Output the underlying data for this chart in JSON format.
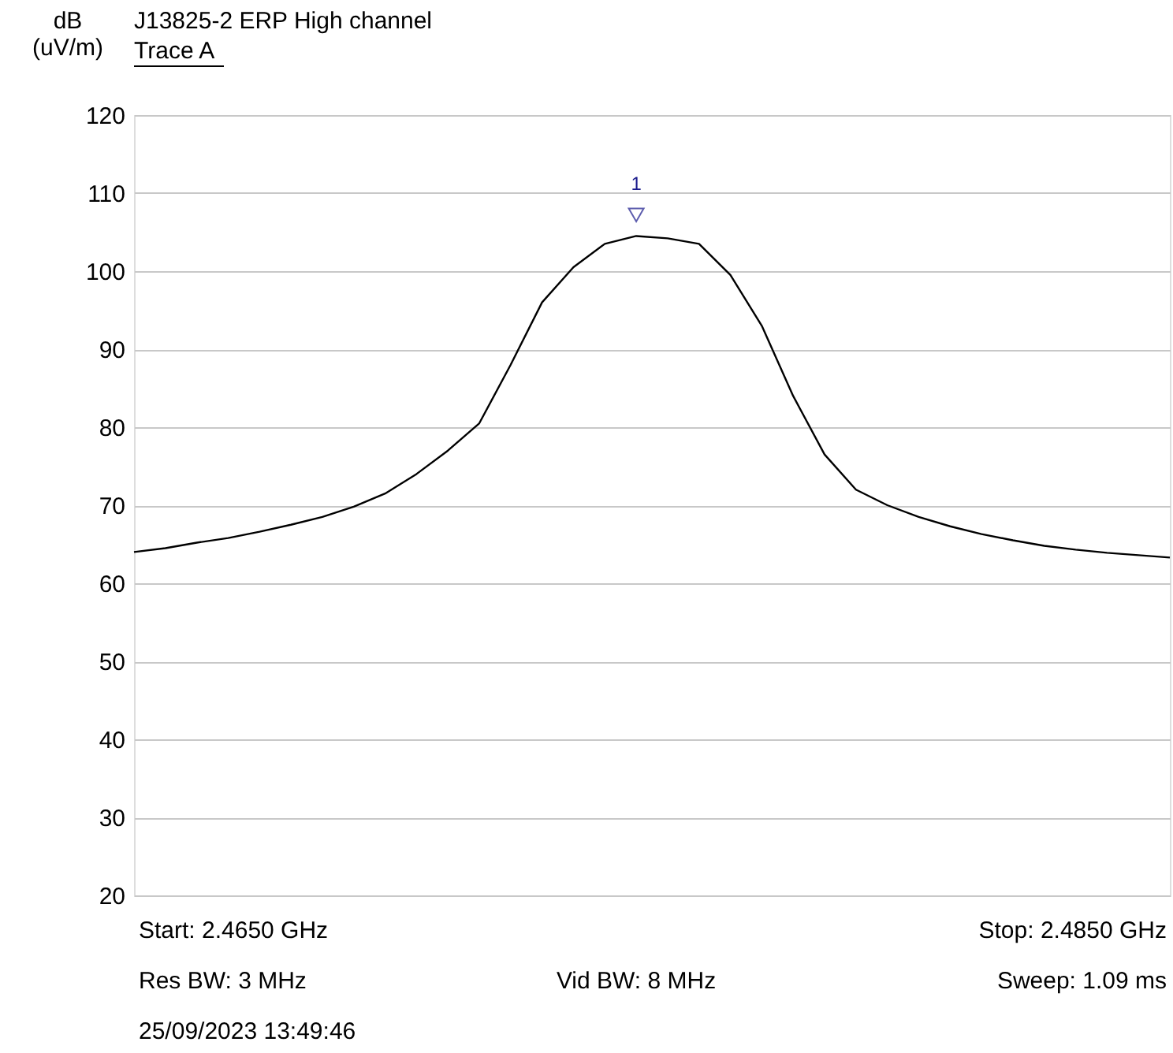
{
  "chart_data": {
    "type": "line",
    "title": "J13825-2 ERP High channel",
    "subtitle": "Trace A",
    "ylabel": "dB (uV/m)",
    "categories": [
      null,
      null,
      null,
      null,
      null,
      null,
      null,
      null,
      null,
      null,
      null,
      null,
      null,
      null,
      null,
      null,
      null,
      null,
      null,
      null,
      null,
      null,
      null,
      null,
      null,
      null,
      null,
      null,
      null,
      null,
      null,
      null,
      null,
      null
    ],
    "series": [
      {
        "color": "#000000",
        "values": [
          64,
          64.5,
          65.2,
          65.8,
          66.6,
          67.5,
          68.5,
          69.8,
          71.5,
          74,
          77,
          80.5,
          88,
          96,
          100.5,
          103.5,
          104.5,
          104.2,
          103.5,
          99.5,
          93,
          84,
          76.5,
          72,
          70,
          68.5,
          67.3,
          66.3,
          65.5,
          64.8,
          64.3,
          63.9,
          63.6,
          63.3
        ]
      },
      {
        "type": "scatter",
        "marker": "triangle",
        "color": "#1a1a8c",
        "values": [
          null,
          null,
          null,
          null,
          null,
          null,
          null,
          null,
          null,
          null,
          null,
          null,
          null,
          null,
          null,
          null,
          107.2,
          null,
          null,
          null,
          null,
          null,
          null,
          null,
          null,
          null,
          null,
          null,
          null,
          null,
          null,
          null,
          null,
          null
        ]
      }
    ],
    "ylim": [
      20,
      120
    ],
    "yticks": [
      20,
      30,
      40,
      50,
      60,
      70,
      80,
      90,
      100,
      110,
      120
    ],
    "grid": "y",
    "tick_labels": "y",
    "marker": "none",
    "line_style": "solid",
    "annotations": [
      "1",
      "Start: 2.4650 GHz",
      "Stop: 2.4850 GHz",
      "Res BW: 3 MHz",
      "Vid BW: 8 MHz",
      "Sweep: 1.09 ms",
      "25/09/2023 13:49:46"
    ]
  }
}
